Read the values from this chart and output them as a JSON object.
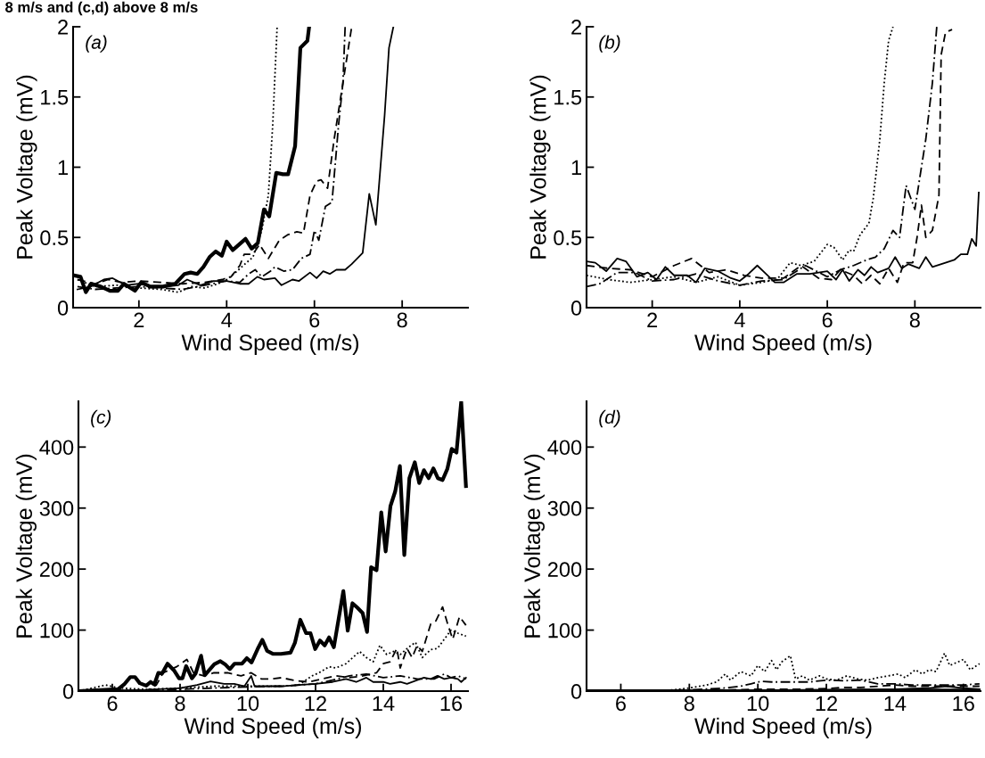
{
  "chart_data": [
    {
      "type": "line",
      "title": "8 m/s and (c,d) above 8 m/s",
      "xlabel": "Wind Speed (m/s)",
      "ylabel": "Peak Voltage (mV)",
      "annotations": [
        "(a)"
      ],
      "xlim": [
        0.5,
        9.5
      ],
      "xticks": [
        2,
        4,
        6,
        8
      ],
      "ylim": [
        0,
        2
      ],
      "yticks": [
        0,
        0.5,
        1,
        1.5,
        2
      ],
      "grid": false,
      "series": [
        {
          "color": "#000000",
          "line_style": "solid",
          "x": [
            0.52,
            0.67,
            0.79,
            0.91,
            1.13,
            1.34,
            1.52,
            1.66,
            1.91,
            2.05,
            2.26,
            2.55,
            2.83,
            3.04,
            3.18,
            3.33,
            3.47,
            3.61,
            3.75,
            3.89,
            4.0,
            4.14,
            4.43,
            4.57,
            4.71,
            4.85,
            4.97,
            5.13,
            5.28,
            5.4,
            5.56,
            5.68,
            5.84,
            5.88
          ],
          "values": [
            0.23,
            0.22,
            0.11,
            0.17,
            0.15,
            0.12,
            0.12,
            0.17,
            0.12,
            0.18,
            0.15,
            0.15,
            0.17,
            0.24,
            0.25,
            0.24,
            0.29,
            0.36,
            0.4,
            0.37,
            0.47,
            0.41,
            0.49,
            0.42,
            0.46,
            0.7,
            0.65,
            0.96,
            0.95,
            0.95,
            1.15,
            1.85,
            1.9,
            2.0
          ]
        },
        {
          "color": "#000000",
          "line_style": "solid",
          "x": [
            0.6,
            0.9,
            1.2,
            1.4,
            1.7,
            2.0,
            2.3,
            2.6,
            2.9,
            3.1,
            3.4,
            3.7,
            4.0,
            4.3,
            4.5,
            4.7,
            4.85,
            5.1,
            5.25,
            5.5,
            5.65,
            5.9,
            6.05,
            6.2,
            6.35,
            6.5,
            6.7,
            6.85,
            7.1,
            7.25,
            7.4,
            7.6,
            7.7,
            7.8
          ],
          "values": [
            0.13,
            0.15,
            0.2,
            0.21,
            0.16,
            0.17,
            0.15,
            0.15,
            0.16,
            0.2,
            0.16,
            0.19,
            0.19,
            0.17,
            0.17,
            0.22,
            0.2,
            0.21,
            0.16,
            0.2,
            0.19,
            0.25,
            0.21,
            0.26,
            0.24,
            0.27,
            0.27,
            0.31,
            0.39,
            0.81,
            0.59,
            1.37,
            1.85,
            2.0
          ]
        },
        {
          "color": "#000000",
          "line_style": "dashed",
          "x": [
            0.6,
            1.0,
            1.3,
            1.6,
            2.0,
            2.5,
            3.0,
            3.5,
            3.9,
            4.1,
            4.3,
            4.4,
            4.6,
            4.75,
            4.95,
            5.2,
            5.4,
            5.6,
            5.75,
            5.9,
            6.05,
            6.15,
            6.3,
            6.45,
            6.6,
            6.75,
            6.85
          ],
          "values": [
            0.2,
            0.17,
            0.2,
            0.18,
            0.19,
            0.18,
            0.17,
            0.18,
            0.2,
            0.22,
            0.3,
            0.38,
            0.38,
            0.45,
            0.35,
            0.48,
            0.52,
            0.54,
            0.53,
            0.8,
            0.9,
            0.91,
            0.85,
            1.2,
            1.5,
            1.8,
            2.0
          ]
        },
        {
          "color": "#000000",
          "line_style": "dashdot",
          "x": [
            0.6,
            1.0,
            1.5,
            2.0,
            2.5,
            3.0,
            3.5,
            4.0,
            4.3,
            4.5,
            4.65,
            4.8,
            5.0,
            5.1,
            5.3,
            5.5,
            5.7,
            5.9,
            6.0,
            6.1,
            6.25,
            6.4,
            6.55,
            6.65,
            6.7
          ],
          "values": [
            0.15,
            0.13,
            0.14,
            0.15,
            0.14,
            0.13,
            0.16,
            0.19,
            0.18,
            0.24,
            0.27,
            0.22,
            0.26,
            0.29,
            0.26,
            0.27,
            0.35,
            0.38,
            0.55,
            0.48,
            0.72,
            0.75,
            1.3,
            1.6,
            2.0
          ]
        },
        {
          "color": "#000000",
          "line_style": "dotted",
          "x": [
            0.6,
            1.0,
            1.5,
            2.0,
            2.5,
            2.9,
            3.2,
            3.5,
            3.8,
            4.0,
            4.2,
            4.45,
            4.6,
            4.8,
            4.95,
            5.05,
            5.15
          ],
          "values": [
            0.2,
            0.15,
            0.16,
            0.14,
            0.13,
            0.11,
            0.15,
            0.14,
            0.17,
            0.2,
            0.25,
            0.32,
            0.36,
            0.55,
            0.8,
            1.3,
            2.0
          ]
        }
      ]
    },
    {
      "type": "line",
      "xlabel": "Wind Speed (m/s)",
      "ylabel": "Peak Voltage (mV)",
      "annotations": [
        "(b)"
      ],
      "xlim": [
        0.5,
        9.5
      ],
      "xticks": [
        2,
        4,
        6,
        8
      ],
      "ylim": [
        0,
        2
      ],
      "yticks": [
        0,
        0.5,
        1,
        1.5,
        2
      ],
      "grid": false,
      "series": [
        {
          "color": "#000000",
          "line_style": "solid",
          "x": [
            0.5,
            0.7,
            0.95,
            1.2,
            1.4,
            1.65,
            1.9,
            2.1,
            2.3,
            2.5,
            2.8,
            3.0,
            3.2,
            3.5,
            3.8,
            4.0,
            4.2,
            4.4,
            4.6,
            4.8,
            5.0,
            5.3,
            5.6,
            6.0,
            6.2,
            6.35,
            6.5,
            6.7,
            6.85,
            7.0,
            7.15,
            7.4,
            7.55,
            7.7,
            7.85,
            8.1,
            8.25,
            8.4,
            8.7,
            8.9,
            9.05,
            9.2,
            9.3,
            9.4,
            9.46
          ],
          "values": [
            0.33,
            0.32,
            0.26,
            0.35,
            0.33,
            0.22,
            0.25,
            0.2,
            0.29,
            0.23,
            0.23,
            0.18,
            0.28,
            0.26,
            0.21,
            0.19,
            0.24,
            0.3,
            0.24,
            0.18,
            0.18,
            0.24,
            0.24,
            0.26,
            0.2,
            0.27,
            0.19,
            0.27,
            0.23,
            0.29,
            0.25,
            0.28,
            0.36,
            0.28,
            0.31,
            0.28,
            0.36,
            0.29,
            0.32,
            0.34,
            0.38,
            0.38,
            0.49,
            0.44,
            0.82
          ]
        },
        {
          "color": "#000000",
          "line_style": "dashed",
          "x": [
            0.5,
            1.0,
            1.5,
            2.0,
            2.5,
            2.9,
            3.3,
            3.7,
            4.1,
            4.5,
            5.0,
            5.4,
            5.8,
            6.1,
            6.3,
            6.6,
            6.8,
            7.0,
            7.2,
            7.4,
            7.6,
            7.75,
            7.95,
            8.05,
            8.15,
            8.25,
            8.4,
            8.55,
            8.6,
            8.7,
            8.85
          ],
          "values": [
            0.3,
            0.28,
            0.27,
            0.22,
            0.3,
            0.35,
            0.25,
            0.27,
            0.23,
            0.21,
            0.21,
            0.3,
            0.21,
            0.2,
            0.27,
            0.23,
            0.17,
            0.23,
            0.17,
            0.28,
            0.18,
            0.32,
            0.32,
            0.5,
            0.73,
            0.5,
            0.55,
            0.8,
            1.8,
            1.96,
            1.98
          ]
        },
        {
          "color": "#000000",
          "line_style": "dashdot",
          "x": [
            0.5,
            0.8,
            1.2,
            1.6,
            2.0,
            2.5,
            3.0,
            3.5,
            4.0,
            4.5,
            5.0,
            5.5,
            6.0,
            6.3,
            6.6,
            6.9,
            7.1,
            7.3,
            7.5,
            7.65,
            7.8,
            8.0,
            8.1,
            8.25,
            8.4,
            8.5
          ],
          "values": [
            0.15,
            0.17,
            0.25,
            0.25,
            0.19,
            0.2,
            0.24,
            0.19,
            0.16,
            0.19,
            0.2,
            0.3,
            0.22,
            0.27,
            0.3,
            0.34,
            0.36,
            0.42,
            0.55,
            0.5,
            0.87,
            0.7,
            0.9,
            1.2,
            1.6,
            2.0
          ]
        },
        {
          "color": "#000000",
          "line_style": "dotted",
          "x": [
            0.5,
            1.0,
            1.5,
            2.0,
            2.5,
            3.0,
            3.5,
            4.0,
            4.5,
            4.85,
            5.15,
            5.4,
            5.7,
            6.0,
            6.15,
            6.35,
            6.5,
            6.6,
            6.75,
            6.95,
            7.05,
            7.2,
            7.3,
            7.4,
            7.5
          ],
          "values": [
            0.23,
            0.2,
            0.18,
            0.2,
            0.22,
            0.18,
            0.22,
            0.16,
            0.18,
            0.2,
            0.32,
            0.3,
            0.33,
            0.45,
            0.43,
            0.34,
            0.41,
            0.4,
            0.52,
            0.6,
            0.78,
            1.2,
            1.6,
            1.9,
            2.0
          ]
        }
      ]
    },
    {
      "type": "line",
      "xlabel": "Wind Speed (m/s)",
      "ylabel": "Peak Voltage (mV)",
      "annotations": [
        "(c)"
      ],
      "xlim": [
        5,
        16.5
      ],
      "xticks": [
        6,
        8,
        10,
        12,
        14,
        16
      ],
      "ylim": [
        0,
        475
      ],
      "yticks": [
        0,
        100,
        200,
        300,
        400
      ],
      "grid": false,
      "series": [
        {
          "color": "#000000",
          "line_style": "solid",
          "x": [
            5.0,
            6.17,
            6.35,
            6.53,
            6.67,
            6.81,
            7.0,
            7.13,
            7.24,
            7.36,
            7.47,
            7.63,
            7.82,
            7.97,
            8.07,
            8.18,
            8.35,
            8.46,
            8.62,
            8.73,
            9.01,
            9.19,
            9.33,
            9.47,
            9.61,
            9.83,
            9.97,
            10.11,
            10.29,
            10.43,
            10.57,
            10.75,
            10.98,
            11.26,
            11.39,
            11.55,
            11.72,
            11.85,
            11.99,
            12.13,
            12.27,
            12.4,
            12.54,
            12.82,
            12.95,
            13.09,
            13.23,
            13.39,
            13.52,
            13.64,
            13.8,
            13.94,
            14.07,
            14.21,
            14.35,
            14.49,
            14.62,
            14.77,
            14.93,
            15.06,
            15.2,
            15.34,
            15.48,
            15.61,
            15.75,
            15.89,
            16.02,
            16.16,
            16.3,
            16.44
          ],
          "values": [
            0,
            3,
            11,
            23,
            23,
            13,
            9,
            15,
            11,
            30,
            29,
            45,
            34,
            21,
            21,
            41,
            21,
            29,
            58,
            26,
            44,
            49,
            44,
            36,
            45,
            45,
            54,
            47,
            69,
            84,
            66,
            61,
            61,
            63,
            79,
            117,
            95,
            95,
            69,
            83,
            75,
            88,
            72,
            164,
            99,
            144,
            137,
            128,
            97,
            203,
            198,
            293,
            229,
            303,
            327,
            369,
            223,
            349,
            375,
            341,
            362,
            349,
            365,
            349,
            346,
            364,
            397,
            391,
            474,
            336
          ]
        },
        {
          "color": "#000000",
          "line_style": "solid",
          "x": [
            5.0,
            7.0,
            8.0,
            8.5,
            8.9,
            9.3,
            9.6,
            9.9,
            10.1,
            10.2,
            11.0,
            11.5,
            12.0,
            12.5,
            12.9,
            13.2,
            13.5,
            13.7,
            14.0,
            14.2,
            14.5,
            14.7,
            15.0,
            15.2,
            15.4,
            15.6,
            15.8,
            16.0,
            16.2,
            16.3,
            16.44
          ],
          "values": [
            0,
            2,
            5,
            10,
            16,
            12,
            12,
            8,
            25,
            8,
            8,
            10,
            12,
            15,
            20,
            15,
            22,
            15,
            15,
            12,
            15,
            12,
            18,
            22,
            20,
            25,
            20,
            22,
            20,
            15,
            22
          ]
        },
        {
          "color": "#000000",
          "line_style": "dashed",
          "x": [
            5.0,
            7.0,
            7.3,
            7.5,
            7.7,
            7.9,
            8.2,
            8.4,
            8.7,
            9.0,
            9.4,
            9.8,
            10.1,
            10.4,
            10.7,
            11.0,
            11.4,
            11.8,
            12.2,
            12.6,
            13.0,
            13.4,
            13.8,
            14.0,
            14.2,
            14.4,
            14.5,
            14.7,
            14.85,
            15.0,
            15.15,
            15.4,
            15.55,
            15.75,
            15.9,
            16.05,
            16.25,
            16.44
          ],
          "values": [
            0,
            0,
            10,
            30,
            35,
            40,
            52,
            30,
            25,
            30,
            30,
            25,
            30,
            20,
            20,
            22,
            17,
            15,
            20,
            25,
            22,
            25,
            30,
            45,
            48,
            70,
            38,
            70,
            55,
            75,
            65,
            110,
            115,
            138,
            110,
            85,
            122,
            108
          ]
        },
        {
          "color": "#000000",
          "line_style": "dashdot",
          "x": [
            5.0,
            8.0,
            9.0,
            10.0,
            11.0,
            12.0,
            12.5,
            13.0,
            13.5,
            14.0,
            14.5,
            15.0,
            15.5,
            15.8,
            16.0,
            16.2,
            16.44
          ],
          "values": [
            0,
            3,
            5,
            7,
            8,
            12,
            18,
            25,
            28,
            22,
            25,
            20,
            20,
            28,
            22,
            25,
            20
          ]
        },
        {
          "color": "#000000",
          "line_style": "dotted",
          "x": [
            5.0,
            5.8,
            6.2,
            7.0,
            8.0,
            9.0,
            10.0,
            11.0,
            11.5,
            11.9,
            12.1,
            12.4,
            12.6,
            12.9,
            13.1,
            13.3,
            13.5,
            13.7,
            13.9,
            14.1,
            14.3,
            14.5,
            14.75,
            14.95,
            15.15,
            15.4,
            15.6,
            15.8,
            16.0,
            16.2,
            16.44
          ],
          "values": [
            0,
            10,
            5,
            3,
            5,
            8,
            8,
            8,
            10,
            25,
            30,
            40,
            38,
            45,
            55,
            65,
            55,
            48,
            75,
            60,
            65,
            60,
            72,
            80,
            55,
            68,
            70,
            85,
            100,
            95,
            90
          ]
        }
      ]
    },
    {
      "type": "line",
      "xlabel": "Wind Speed (m/s)",
      "ylabel": "Peak Voltage (mV)",
      "annotations": [
        "(d)"
      ],
      "xlim": [
        5,
        16.5
      ],
      "xticks": [
        6,
        8,
        10,
        12,
        14,
        16
      ],
      "ylim": [
        0,
        475
      ],
      "yticks": [
        0,
        100,
        200,
        300,
        400
      ],
      "grid": false,
      "series": [
        {
          "color": "#000000",
          "line_style": "solid",
          "x": [
            5.0,
            10.0,
            14.0,
            16.47
          ],
          "values": [
            0,
            0,
            1,
            1
          ]
        },
        {
          "color": "#000000",
          "line_style": "solid",
          "x": [
            5.0,
            10.0,
            12.0,
            14.0,
            15.0,
            15.5,
            16.0,
            16.47
          ],
          "values": [
            0,
            1,
            2,
            3,
            5,
            8,
            5,
            3
          ]
        },
        {
          "color": "#000000",
          "line_style": "dashed",
          "x": [
            5.0,
            9.0,
            10.0,
            11.0,
            12.0,
            12.5,
            13.0,
            13.5,
            14.0,
            14.5,
            15.0,
            15.5,
            16.0,
            16.47
          ],
          "values": [
            0,
            2,
            3,
            3,
            4,
            6,
            6,
            8,
            10,
            8,
            8,
            8,
            8,
            8
          ]
        },
        {
          "color": "#000000",
          "line_style": "dashdot",
          "x": [
            5.0,
            8.0,
            9.0,
            9.5,
            9.8,
            10.1,
            10.4,
            11.0,
            11.5,
            12.0,
            12.5,
            13.0,
            13.5,
            14.0,
            14.5,
            15.0,
            15.5,
            16.0,
            16.47
          ],
          "values": [
            0,
            2,
            5,
            8,
            12,
            16,
            15,
            15,
            15,
            18,
            17,
            18,
            12,
            12,
            10,
            10,
            10,
            10,
            12
          ]
        },
        {
          "color": "#000000",
          "line_style": "dotted",
          "x": [
            5.0,
            7.0,
            7.5,
            8.0,
            8.5,
            8.8,
            9.05,
            9.2,
            9.5,
            9.8,
            10.0,
            10.2,
            10.4,
            10.55,
            10.7,
            10.95,
            11.1,
            11.3,
            11.5,
            11.8,
            12.0,
            12.3,
            12.6,
            12.9,
            13.2,
            13.5,
            13.8,
            14.1,
            14.3,
            14.6,
            14.8,
            15.0,
            15.2,
            15.45,
            15.6,
            15.85,
            16.0,
            16.2,
            16.47
          ],
          "values": [
            0,
            0,
            2,
            5,
            10,
            15,
            28,
            18,
            32,
            25,
            42,
            32,
            50,
            35,
            48,
            58,
            20,
            25,
            18,
            25,
            20,
            18,
            25,
            20,
            18,
            22,
            25,
            28,
            22,
            35,
            28,
            35,
            32,
            62,
            42,
            48,
            52,
            35,
            45
          ]
        }
      ]
    }
  ]
}
